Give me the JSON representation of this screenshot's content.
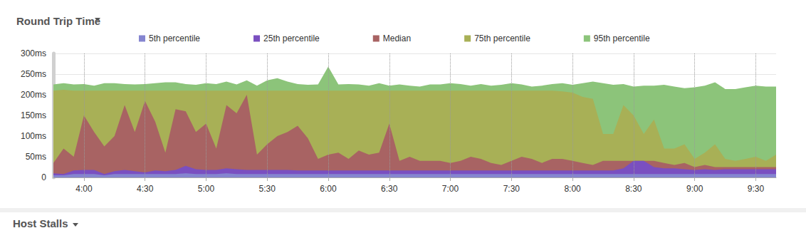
{
  "chart_data": {
    "type": "area",
    "title": "Round Trip Time",
    "categories": [
      null,
      null,
      null,
      "4:00",
      null,
      null,
      null,
      null,
      null,
      "4:30",
      null,
      null,
      null,
      null,
      null,
      "5:00",
      null,
      null,
      null,
      null,
      null,
      "5:30",
      null,
      null,
      null,
      null,
      null,
      "6:00",
      null,
      null,
      null,
      null,
      null,
      "6:30",
      null,
      null,
      null,
      null,
      null,
      "7:00",
      null,
      null,
      null,
      null,
      null,
      "7:30",
      null,
      null,
      null,
      null,
      null,
      "8:00",
      null,
      null,
      null,
      null,
      null,
      "8:30",
      null,
      null,
      null,
      null,
      null,
      "9:00",
      null,
      null,
      null,
      null,
      null,
      "9:30",
      null,
      null
    ],
    "series": [
      {
        "name": "5th percentile",
        "color": "#8585d0",
        "values": [
          5,
          5,
          8,
          8,
          8,
          5,
          8,
          8,
          8,
          8,
          8,
          8,
          8,
          10,
          8,
          8,
          8,
          10,
          8,
          8,
          8,
          8,
          8,
          8,
          8,
          8,
          8,
          8,
          8,
          8,
          8,
          8,
          8,
          8,
          8,
          8,
          8,
          8,
          8,
          8,
          8,
          8,
          8,
          8,
          8,
          8,
          8,
          8,
          8,
          8,
          8,
          8,
          8,
          8,
          8,
          8,
          8,
          8,
          8,
          8,
          8,
          8,
          8,
          8,
          8,
          8,
          8,
          8,
          8,
          8,
          8,
          8
        ]
      },
      {
        "name": "25th percentile",
        "color": "#7a4fc0",
        "values": [
          10,
          8,
          17,
          18,
          18,
          8,
          15,
          18,
          15,
          12,
          17,
          15,
          18,
          28,
          20,
          18,
          18,
          22,
          20,
          18,
          18,
          18,
          18,
          18,
          17,
          17,
          17,
          17,
          17,
          17,
          17,
          17,
          17,
          17,
          17,
          17,
          17,
          17,
          17,
          17,
          17,
          17,
          17,
          17,
          17,
          17,
          17,
          17,
          17,
          17,
          17,
          17,
          17,
          17,
          17,
          17,
          22,
          40,
          40,
          25,
          22,
          22,
          20,
          18,
          20,
          18,
          20,
          20,
          20,
          20,
          20,
          20
        ]
      },
      {
        "name": "Median",
        "color": "#a86363",
        "values": [
          35,
          70,
          50,
          150,
          110,
          75,
          100,
          175,
          110,
          185,
          135,
          60,
          165,
          160,
          110,
          130,
          70,
          175,
          155,
          200,
          55,
          80,
          100,
          110,
          125,
          95,
          45,
          55,
          60,
          45,
          65,
          55,
          60,
          130,
          40,
          50,
          40,
          40,
          40,
          35,
          40,
          50,
          45,
          35,
          30,
          40,
          50,
          45,
          35,
          45,
          45,
          40,
          35,
          30,
          40,
          40,
          40,
          40,
          40,
          40,
          35,
          30,
          35,
          25,
          30,
          25,
          25,
          25,
          25,
          25,
          25,
          25
        ]
      },
      {
        "name": "75th percentile",
        "color": "#a8b056",
        "values": [
          210,
          212,
          210,
          210,
          210,
          210,
          210,
          210,
          210,
          210,
          210,
          210,
          210,
          210,
          210,
          210,
          210,
          210,
          210,
          210,
          210,
          210,
          210,
          210,
          210,
          210,
          210,
          210,
          210,
          210,
          210,
          210,
          210,
          210,
          210,
          210,
          210,
          210,
          210,
          210,
          210,
          210,
          210,
          210,
          210,
          210,
          210,
          210,
          210,
          210,
          208,
          205,
          195,
          190,
          105,
          105,
          175,
          150,
          105,
          140,
          70,
          70,
          80,
          45,
          60,
          80,
          45,
          40,
          45,
          50,
          40,
          55
        ]
      },
      {
        "name": "95th percentile",
        "color": "#8cc47a",
        "values": [
          225,
          228,
          225,
          226,
          222,
          228,
          228,
          226,
          225,
          226,
          228,
          230,
          230,
          226,
          224,
          228,
          226,
          232,
          225,
          235,
          222,
          235,
          240,
          232,
          226,
          224,
          225,
          268,
          225,
          226,
          225,
          222,
          228,
          222,
          225,
          222,
          220,
          225,
          225,
          228,
          226,
          222,
          226,
          222,
          224,
          228,
          225,
          220,
          222,
          226,
          228,
          224,
          228,
          232,
          228,
          224,
          226,
          220,
          222,
          222,
          224,
          220,
          216,
          218,
          222,
          230,
          214,
          214,
          218,
          222,
          220,
          220
        ]
      }
    ],
    "ylim": [
      0,
      300
    ],
    "yticks": [
      0,
      {
        "value": 50,
        "label": "50ms"
      },
      {
        "value": 100,
        "label": "100ms"
      },
      {
        "value": 150,
        "label": "150ms"
      },
      {
        "value": 200,
        "label": "200ms"
      },
      {
        "value": 250,
        "label": "250ms"
      },
      {
        "value": 300,
        "label": "300ms"
      }
    ],
    "grid": true,
    "legend": "top"
  },
  "next_panel": {
    "title": "Host Stalls"
  }
}
